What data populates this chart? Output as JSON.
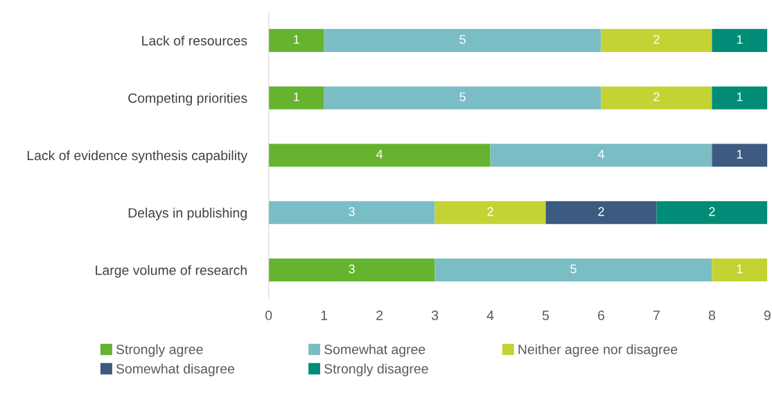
{
  "chart_data": {
    "type": "bar",
    "orientation": "horizontal",
    "stacked": true,
    "categories": [
      "Lack of resources",
      "Competing priorities",
      "Lack of evidence synthesis capability",
      "Delays in publishing",
      "Large volume of research"
    ],
    "series": [
      {
        "name": "Strongly agree",
        "color": "#65b32e",
        "values": [
          1,
          1,
          4,
          null,
          3
        ]
      },
      {
        "name": "Somewhat agree",
        "color": "#7bbdc4",
        "values": [
          5,
          5,
          4,
          3,
          5
        ]
      },
      {
        "name": "Neither agree nor disagree",
        "color": "#c4d334",
        "values": [
          2,
          2,
          null,
          2,
          1
        ]
      },
      {
        "name": "Somewhat disagree",
        "color": "#3d5a80",
        "values": [
          null,
          null,
          1,
          2,
          null
        ]
      },
      {
        "name": "Strongly disagree",
        "color": "#008c76",
        "values": [
          1,
          1,
          null,
          2,
          null
        ]
      }
    ],
    "xlim": [
      0,
      9
    ],
    "xticks": [
      0,
      1,
      2,
      3,
      4,
      5,
      6,
      7,
      8,
      9
    ],
    "data_labels": true,
    "grid": false,
    "legend": "bottom"
  }
}
